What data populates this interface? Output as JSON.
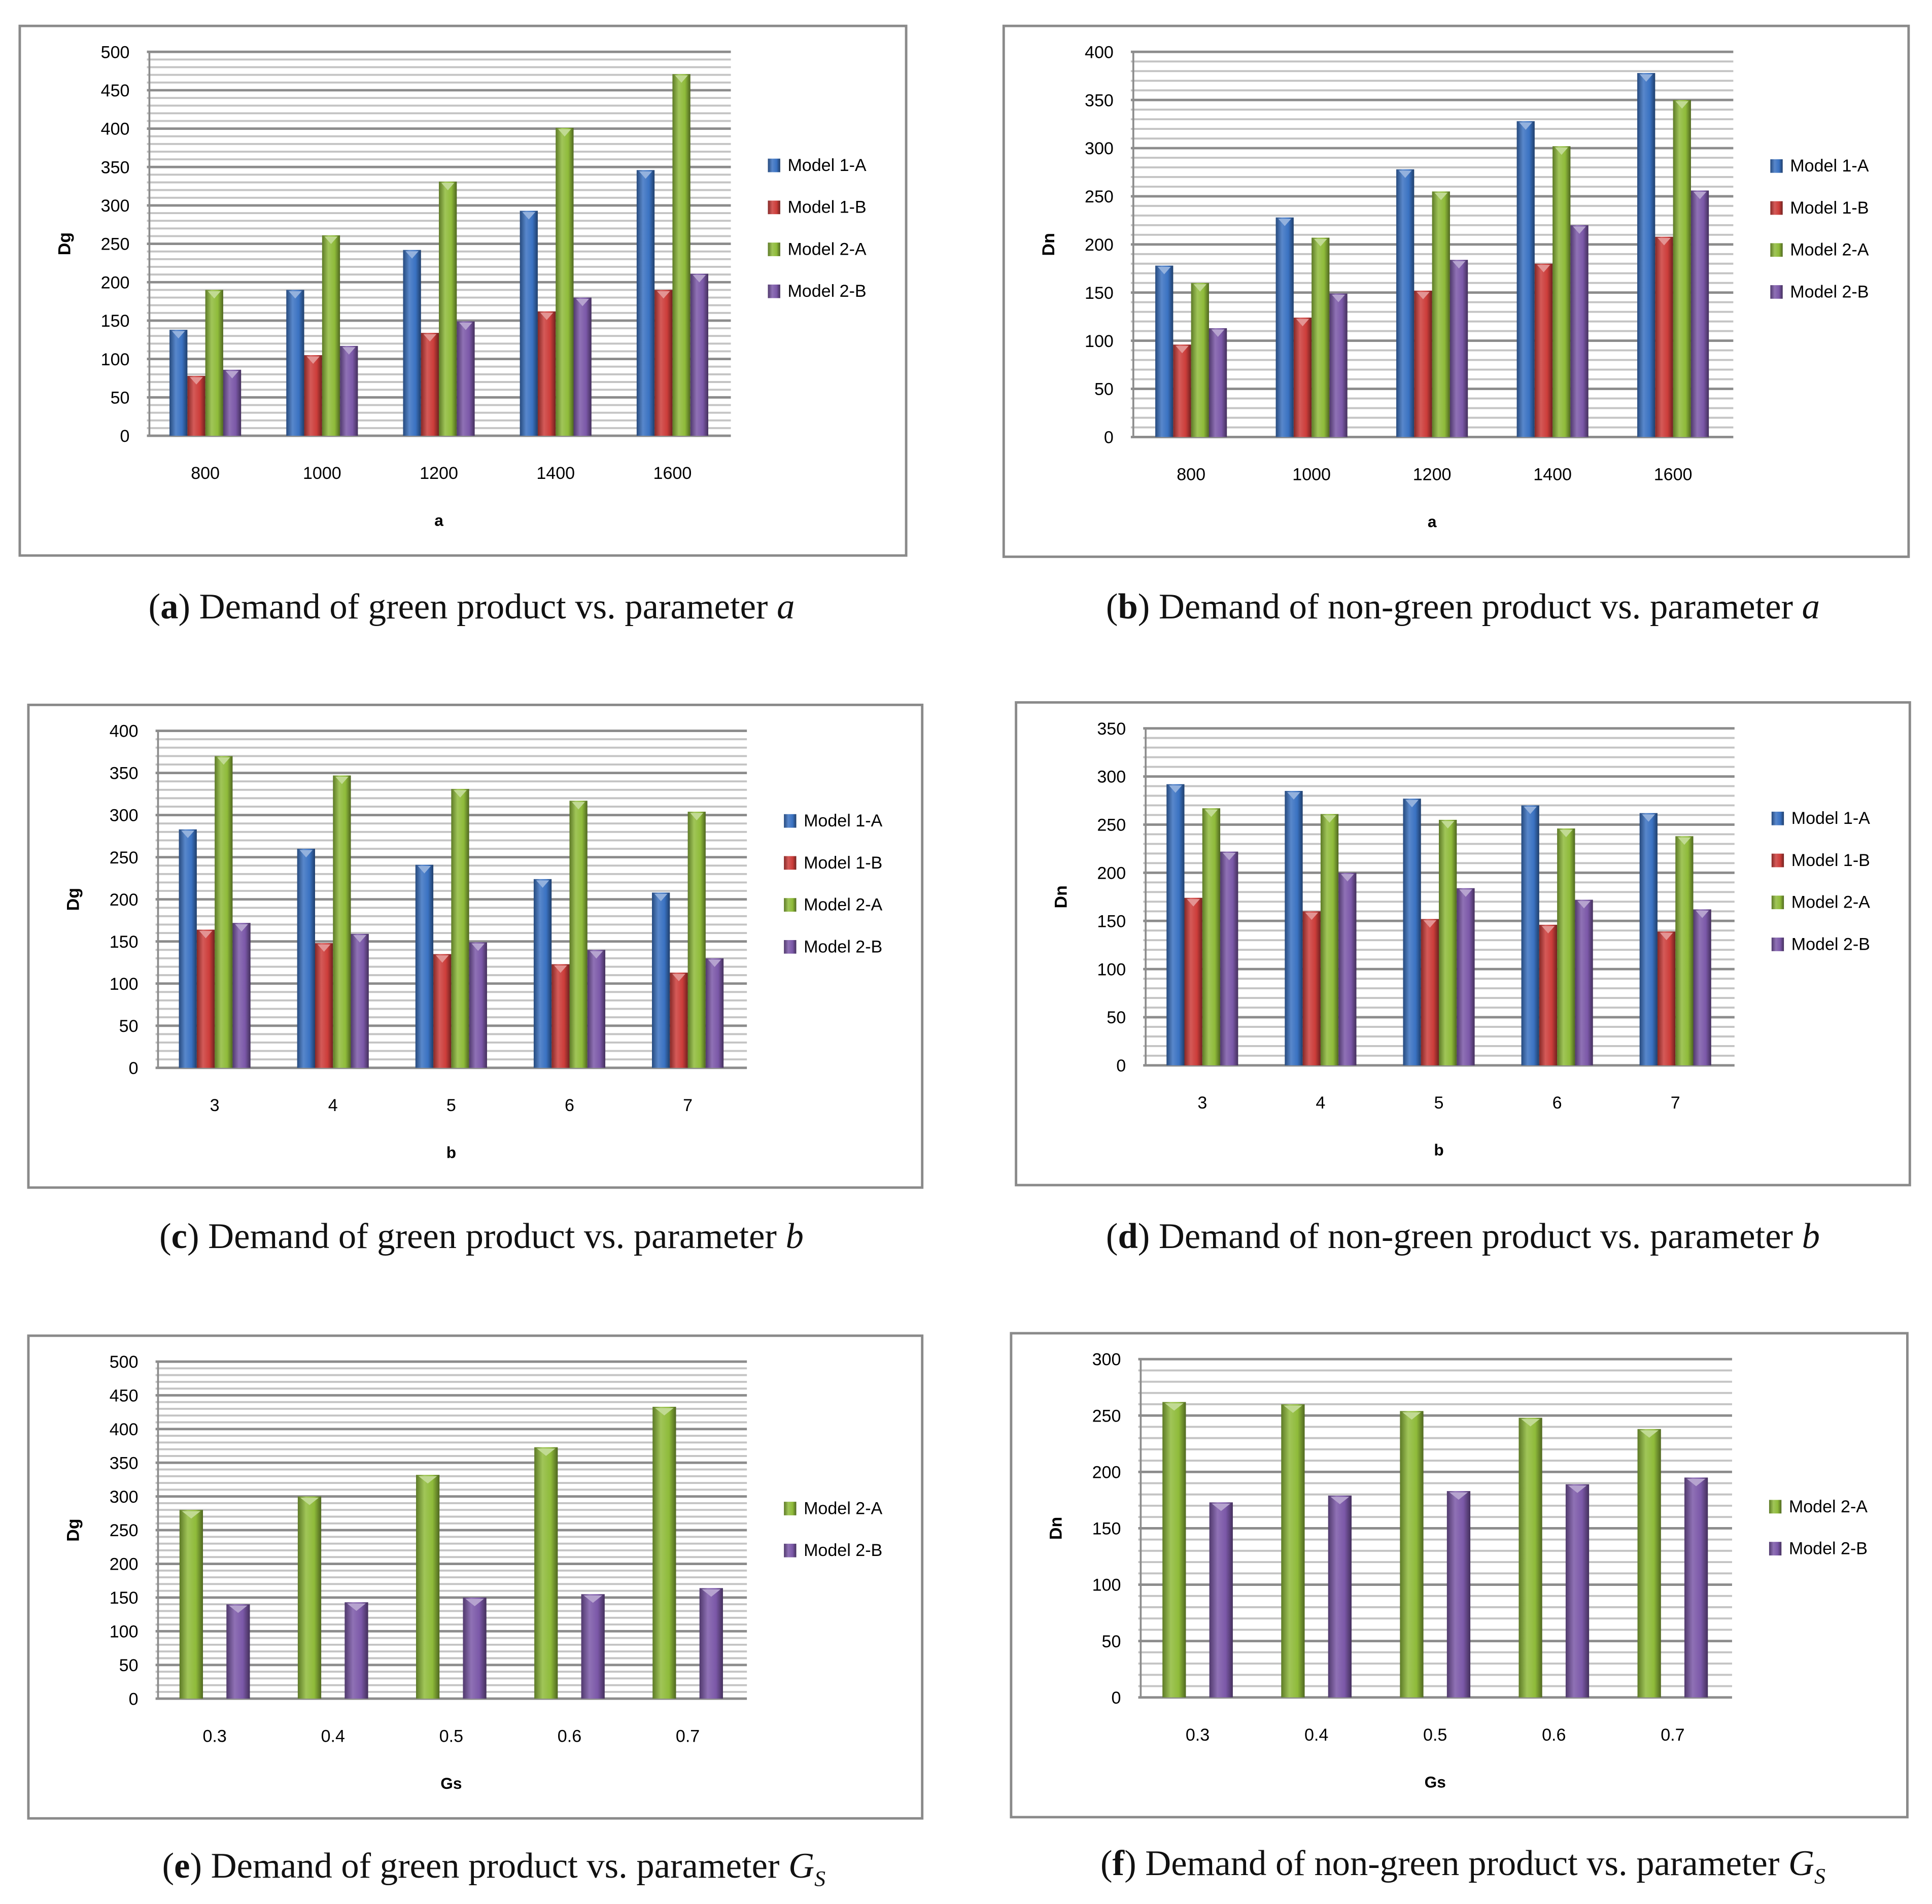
{
  "colors": {
    "Model 1-A": "#3a72c2",
    "Model 1-B": "#cc3d3a",
    "Model 2-A": "#8fbb3a",
    "Model 2-B": "#7b58a8"
  },
  "chart_data": [
    {
      "id": "a",
      "type": "bar",
      "ylabel": "Dg",
      "xlabel": "a",
      "categories": [
        "800",
        "1000",
        "1200",
        "1400",
        "1600"
      ],
      "ylim": [
        0,
        500
      ],
      "ystep": 50,
      "grid": true,
      "legend": "right",
      "series": [
        {
          "name": "Model 1-A",
          "values": [
            138,
            190,
            242,
            293,
            346
          ]
        },
        {
          "name": "Model 1-B",
          "values": [
            78,
            105,
            134,
            162,
            190
          ]
        },
        {
          "name": "Model 2-A",
          "values": [
            190,
            261,
            331,
            401,
            471
          ]
        },
        {
          "name": "Model 2-B",
          "values": [
            86,
            117,
            149,
            180,
            211
          ]
        }
      ],
      "caption": {
        "label": "a",
        "text": "Demand of green product vs. parameter",
        "param": "a",
        "sub": ""
      }
    },
    {
      "id": "b",
      "type": "bar",
      "ylabel": "Dn",
      "xlabel": "a",
      "categories": [
        "800",
        "1000",
        "1200",
        "1400",
        "1600"
      ],
      "ylim": [
        0,
        400
      ],
      "ystep": 50,
      "grid": true,
      "legend": "right",
      "series": [
        {
          "name": "Model 1-A",
          "values": [
            178,
            228,
            278,
            328,
            378
          ]
        },
        {
          "name": "Model 1-B",
          "values": [
            96,
            124,
            152,
            180,
            208
          ]
        },
        {
          "name": "Model 2-A",
          "values": [
            160,
            207,
            255,
            302,
            350
          ]
        },
        {
          "name": "Model 2-B",
          "values": [
            113,
            149,
            184,
            220,
            256
          ]
        }
      ],
      "caption": {
        "label": "b",
        "text": "Demand of non-green product vs. parameter",
        "param": "a",
        "sub": ""
      }
    },
    {
      "id": "c",
      "type": "bar",
      "ylabel": "Dg",
      "xlabel": "b",
      "categories": [
        "3",
        "4",
        "5",
        "6",
        "7"
      ],
      "ylim": [
        0,
        400
      ],
      "ystep": 50,
      "grid": true,
      "legend": "right",
      "series": [
        {
          "name": "Model 1-A",
          "values": [
            283,
            260,
            241,
            224,
            208
          ]
        },
        {
          "name": "Model 1-B",
          "values": [
            164,
            148,
            135,
            123,
            113
          ]
        },
        {
          "name": "Model 2-A",
          "values": [
            370,
            347,
            331,
            317,
            304
          ]
        },
        {
          "name": "Model 2-B",
          "values": [
            172,
            159,
            149,
            140,
            130
          ]
        }
      ],
      "caption": {
        "label": "c",
        "text": "Demand of green product vs. parameter",
        "param": "b",
        "sub": ""
      }
    },
    {
      "id": "d",
      "type": "bar",
      "ylabel": "Dn",
      "xlabel": "b",
      "categories": [
        "3",
        "4",
        "5",
        "6",
        "7"
      ],
      "ylim": [
        0,
        350
      ],
      "ystep": 50,
      "grid": true,
      "legend": "right",
      "series": [
        {
          "name": "Model 1-A",
          "values": [
            292,
            285,
            277,
            270,
            262
          ]
        },
        {
          "name": "Model 1-B",
          "values": [
            174,
            160,
            152,
            146,
            139
          ]
        },
        {
          "name": "Model 2-A",
          "values": [
            267,
            261,
            255,
            246,
            238
          ]
        },
        {
          "name": "Model 2-B",
          "values": [
            222,
            200,
            184,
            172,
            162
          ]
        }
      ],
      "caption": {
        "label": "d",
        "text": "Demand of non-green product vs. parameter",
        "param": "b",
        "sub": ""
      }
    },
    {
      "id": "e",
      "type": "bar",
      "ylabel": "Dg",
      "xlabel": "Gs",
      "categories": [
        "0.3",
        "0.4",
        "0.5",
        "0.6",
        "0.7"
      ],
      "ylim": [
        0,
        500
      ],
      "ystep": 50,
      "grid": true,
      "legend": "right",
      "series": [
        {
          "name": "Model 2-A",
          "values": [
            280,
            300,
            332,
            373,
            433
          ]
        },
        {
          "name": "Model 2-B",
          "values": [
            140,
            143,
            150,
            155,
            164
          ]
        }
      ],
      "caption": {
        "label": "e",
        "text": "Demand of green product vs. parameter",
        "param": "G",
        "sub": "S"
      }
    },
    {
      "id": "f",
      "type": "bar",
      "ylabel": "Dn",
      "xlabel": "Gs",
      "categories": [
        "0.3",
        "0.4",
        "0.5",
        "0.6",
        "0.7"
      ],
      "ylim": [
        0,
        300
      ],
      "ystep": 50,
      "grid": true,
      "legend": "right",
      "series": [
        {
          "name": "Model 2-A",
          "values": [
            262,
            260,
            254,
            248,
            238
          ]
        },
        {
          "name": "Model 2-B",
          "values": [
            173,
            179,
            183,
            189,
            195
          ]
        }
      ],
      "caption": {
        "label": "f",
        "text": "Demand of non-green product vs. parameter",
        "param": "G",
        "sub": "S"
      }
    }
  ]
}
